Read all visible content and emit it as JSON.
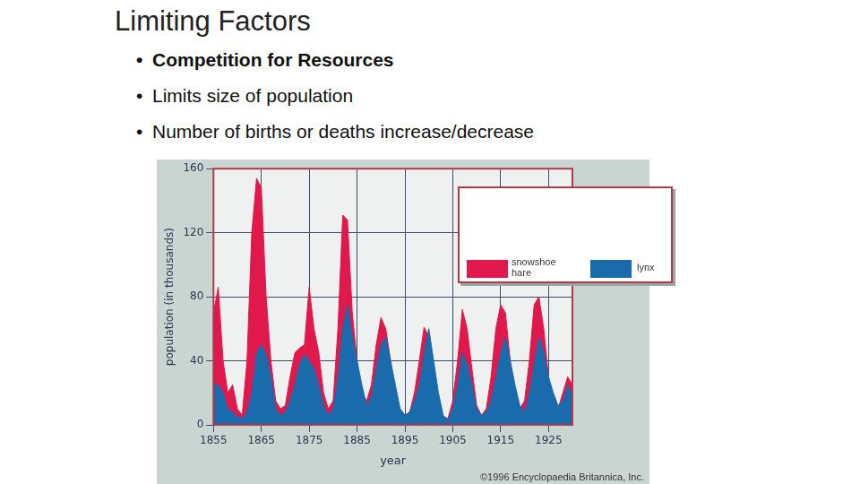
{
  "slide": {
    "title": "Limiting Factors",
    "bullets": [
      "Competition for Resources",
      "Limits size of population",
      "Number of births or deaths increase/decrease"
    ]
  },
  "chart_data": {
    "type": "area",
    "x_label": "year",
    "y_label": "population (in thousands)",
    "annotations": [
      "©1996 Encyclopaedia Britannica, Inc."
    ],
    "x": [
      1855,
      1856,
      1857,
      1858,
      1859,
      1860,
      1861,
      1862,
      1863,
      1864,
      1865,
      1866,
      1867,
      1868,
      1869,
      1870,
      1871,
      1872,
      1873,
      1874,
      1875,
      1876,
      1877,
      1878,
      1879,
      1880,
      1881,
      1882,
      1883,
      1884,
      1885,
      1886,
      1887,
      1888,
      1889,
      1890,
      1891,
      1892,
      1893,
      1894,
      1895,
      1896,
      1897,
      1898,
      1899,
      1900,
      1901,
      1902,
      1903,
      1904,
      1905,
      1906,
      1907,
      1908,
      1909,
      1910,
      1911,
      1912,
      1913,
      1914,
      1915,
      1916,
      1917,
      1918,
      1919,
      1920,
      1921,
      1922,
      1923,
      1924,
      1925,
      1926,
      1927,
      1928,
      1929,
      1930
    ],
    "series": [
      {
        "name": "snowshoe hare",
        "color": "#e0184b",
        "values": [
          70,
          86,
          40,
          20,
          25,
          10,
          6,
          40,
          120,
          154,
          148,
          80,
          40,
          15,
          10,
          12,
          30,
          45,
          48,
          50,
          86,
          60,
          45,
          20,
          10,
          15,
          60,
          131,
          128,
          70,
          40,
          20,
          15,
          25,
          50,
          67,
          60,
          40,
          20,
          10,
          6,
          8,
          20,
          40,
          61,
          55,
          30,
          12,
          5,
          4,
          15,
          40,
          72,
          60,
          35,
          12,
          6,
          10,
          30,
          60,
          75,
          70,
          40,
          20,
          10,
          15,
          40,
          75,
          80,
          60,
          30,
          15,
          10,
          20,
          30,
          25
        ]
      },
      {
        "name": "lynx",
        "color": "#1a6bab",
        "values": [
          25,
          25,
          20,
          10,
          8,
          5,
          4,
          8,
          20,
          45,
          50,
          44,
          30,
          10,
          6,
          8,
          15,
          25,
          38,
          44,
          40,
          35,
          25,
          12,
          6,
          10,
          30,
          60,
          75,
          55,
          40,
          25,
          12,
          18,
          35,
          50,
          55,
          40,
          25,
          10,
          6,
          8,
          15,
          25,
          45,
          60,
          40,
          20,
          6,
          3,
          10,
          25,
          45,
          38,
          25,
          10,
          6,
          8,
          15,
          30,
          45,
          55,
          40,
          25,
          12,
          8,
          20,
          38,
          55,
          45,
          30,
          20,
          12,
          15,
          25,
          18
        ]
      }
    ],
    "xlim": [
      1855,
      1930
    ],
    "xticks": [
      1855,
      1865,
      1875,
      1885,
      1895,
      1905,
      1915,
      1925
    ],
    "ylim": [
      0,
      160
    ],
    "yticks": [
      0,
      40,
      80,
      120,
      160
    ],
    "grid": true,
    "legend": "top right"
  }
}
